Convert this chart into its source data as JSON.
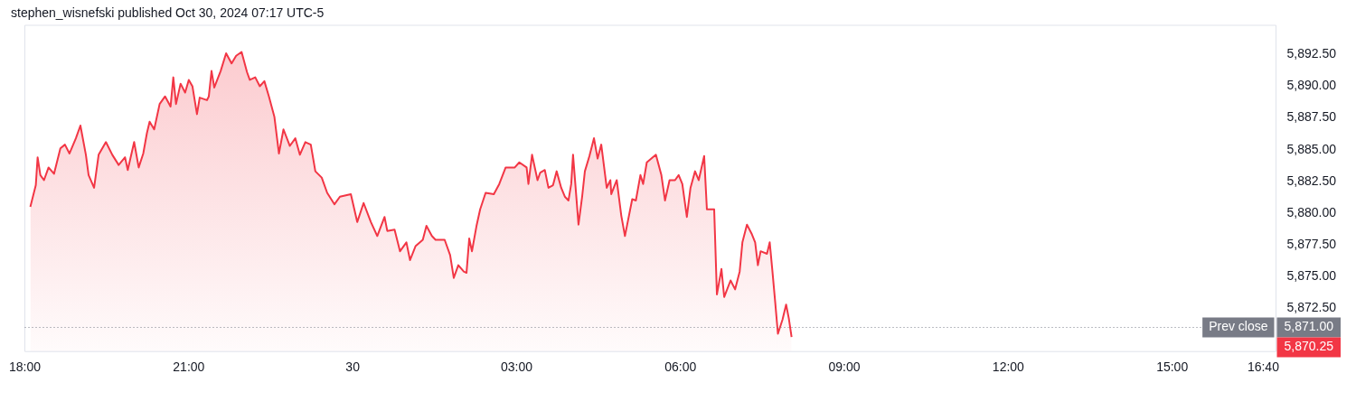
{
  "chart_data": {
    "type": "area",
    "title": "stephen_wisnefski published Oct 30, 2024 07:17 UTC-5",
    "xlim": [
      "2024-10-29T18:00",
      "2024-10-30T16:54"
    ],
    "ylim": [
      5869.1,
      5894.8
    ],
    "xticks": [
      {
        "value": "2024-10-29T18:00",
        "label": "18:00"
      },
      {
        "value": "2024-10-29T21:00",
        "label": "21:00"
      },
      {
        "value": "2024-10-30",
        "label": "30"
      },
      {
        "value": "2024-10-30T03:00",
        "label": "03:00"
      },
      {
        "value": "2024-10-30T06:00",
        "label": "06:00"
      },
      {
        "value": "2024-10-30T09:00",
        "label": "09:00"
      },
      {
        "value": "2024-10-30T12:00",
        "label": "12:00"
      },
      {
        "value": "2024-10-30T15:00",
        "label": "15:00"
      },
      {
        "value": "2024-10-30T16:40",
        "label": "16:40"
      }
    ],
    "yticks": [
      {
        "value": 5872.5,
        "label": "5,872.50"
      },
      {
        "value": 5875,
        "label": "5,875.00"
      },
      {
        "value": 5877.5,
        "label": "5,877.50"
      },
      {
        "value": 5880,
        "label": "5,880.00"
      },
      {
        "value": 5882.5,
        "label": "5,882.50"
      },
      {
        "value": 5885,
        "label": "5,885.00"
      },
      {
        "value": 5887.5,
        "label": "5,887.50"
      },
      {
        "value": 5890,
        "label": "5,890.00"
      },
      {
        "value": 5892.5,
        "label": "5,892.50"
      }
    ],
    "grid": false,
    "legend": false,
    "series": [
      {
        "color": "#f23645",
        "x": [
          "2024-10-29T18:06",
          "2024-10-29T18:12",
          "2024-10-29T18:14",
          "2024-10-29T18:17",
          "2024-10-29T18:21",
          "2024-10-29T18:26",
          "2024-10-29T18:32",
          "2024-10-29T18:39",
          "2024-10-29T18:44",
          "2024-10-29T18:49",
          "2024-10-29T18:56",
          "2024-10-29T19:01",
          "2024-10-29T19:07",
          "2024-10-29T19:10",
          "2024-10-29T19:16",
          "2024-10-29T19:21",
          "2024-10-29T19:29",
          "2024-10-29T19:36",
          "2024-10-29T19:43",
          "2024-10-29T19:50",
          "2024-10-29T19:53",
          "2024-10-29T20:00",
          "2024-10-29T20:05",
          "2024-10-29T20:10",
          "2024-10-29T20:14",
          "2024-10-29T20:17",
          "2024-10-29T20:22",
          "2024-10-29T20:28",
          "2024-10-29T20:34",
          "2024-10-29T20:40",
          "2024-10-29T20:43",
          "2024-10-29T20:46",
          "2024-10-29T20:51",
          "2024-10-29T20:56",
          "2024-10-29T21:00",
          "2024-10-29T21:04",
          "2024-10-29T21:09",
          "2024-10-29T21:12",
          "2024-10-29T21:20",
          "2024-10-29T21:22",
          "2024-10-29T21:25",
          "2024-10-29T21:28",
          "2024-10-29T21:35",
          "2024-10-29T21:41",
          "2024-10-29T21:47",
          "2024-10-29T21:52",
          "2024-10-29T21:58",
          "2024-10-29T22:04",
          "2024-10-29T22:07",
          "2024-10-29T22:13",
          "2024-10-29T22:18",
          "2024-10-29T22:23",
          "2024-10-29T22:28",
          "2024-10-29T22:34",
          "2024-10-29T22:39",
          "2024-10-29T22:44",
          "2024-10-29T22:51",
          "2024-10-29T22:57",
          "2024-10-29T23:02",
          "2024-10-29T23:08",
          "2024-10-29T23:14",
          "2024-10-29T23:19",
          "2024-10-29T23:26",
          "2024-10-29T23:32",
          "2024-10-29T23:40",
          "2024-10-29T23:46",
          "2024-10-29T23:58",
          "2024-10-30T00:05",
          "2024-10-30T00:12",
          "2024-10-30T00:20",
          "2024-10-30T00:27",
          "2024-10-30T00:35",
          "2024-10-30T00:38",
          "2024-10-30T00:46",
          "2024-10-30T00:52",
          "2024-10-30T00:59",
          "2024-10-30T01:03",
          "2024-10-30T01:09",
          "2024-10-30T01:17",
          "2024-10-30T01:21",
          "2024-10-30T01:27",
          "2024-10-30T01:31",
          "2024-10-30T01:41",
          "2024-10-30T01:47",
          "2024-10-30T01:51",
          "2024-10-30T01:56",
          "2024-10-30T02:02",
          "2024-10-30T02:05",
          "2024-10-30T02:08",
          "2024-10-30T02:11",
          "2024-10-30T02:16",
          "2024-10-30T02:20",
          "2024-10-30T02:26",
          "2024-10-30T02:35",
          "2024-10-30T02:41",
          "2024-10-30T02:48",
          "2024-10-30T02:58",
          "2024-10-30T03:03",
          "2024-10-30T03:11",
          "2024-10-30T03:13",
          "2024-10-30T03:17",
          "2024-10-30T03:23",
          "2024-10-30T03:26",
          "2024-10-30T03:31",
          "2024-10-30T03:35",
          "2024-10-30T03:40",
          "2024-10-30T03:44",
          "2024-10-30T03:49",
          "2024-10-30T03:53",
          "2024-10-30T03:57",
          "2024-10-30T04:00",
          "2024-10-30T04:02",
          "2024-10-30T04:08",
          "2024-10-30T04:12",
          "2024-10-30T04:15",
          "2024-10-30T04:20",
          "2024-10-30T04:25",
          "2024-10-30T04:29",
          "2024-10-30T04:33",
          "2024-10-30T04:39",
          "2024-10-30T04:43",
          "2024-10-30T04:44",
          "2024-10-30T04:50",
          "2024-10-30T04:55",
          "2024-10-30T04:59",
          "2024-10-30T05:07",
          "2024-10-30T05:11",
          "2024-10-30T05:16",
          "2024-10-30T05:19",
          "2024-10-30T05:23",
          "2024-10-30T05:28",
          "2024-10-30T05:33",
          "2024-10-30T05:39",
          "2024-10-30T05:43",
          "2024-10-30T05:48",
          "2024-10-30T05:54",
          "2024-10-30T05:58",
          "2024-10-30T06:02",
          "2024-10-30T06:07",
          "2024-10-30T06:11",
          "2024-10-30T06:16",
          "2024-10-30T06:20",
          "2024-10-30T06:26",
          "2024-10-30T06:29",
          "2024-10-30T06:37",
          "2024-10-30T06:40",
          "2024-10-30T06:45",
          "2024-10-30T06:48",
          "2024-10-30T06:55",
          "2024-10-30T07:00",
          "2024-10-30T07:05",
          "2024-10-30T07:08",
          "2024-10-30T07:13",
          "2024-10-30T07:18",
          "2024-10-30T07:22",
          "2024-10-30T07:25",
          "2024-10-30T07:28",
          "2024-10-30T07:35",
          "2024-10-30T07:38",
          "2024-10-30T07:41",
          "2024-10-30T07:44",
          "2024-10-30T07:47",
          "2024-10-30T07:52",
          "2024-10-30T07:56",
          "2024-10-30T07:59",
          "2024-10-30T08:02"
        ],
        "values": [
          5880.5,
          5882.2,
          5884.4,
          5883,
          5882.6,
          5883.6,
          5883.1,
          5885.1,
          5885.4,
          5884.7,
          5885.9,
          5886.9,
          5884.6,
          5883,
          5882,
          5884.6,
          5885.6,
          5884.6,
          5883.8,
          5884.4,
          5883.4,
          5885.6,
          5883.6,
          5884.7,
          5886.3,
          5887.2,
          5886.6,
          5888.6,
          5889.2,
          5888.4,
          5890.7,
          5888.6,
          5890.2,
          5889.5,
          5890.5,
          5890,
          5887.8,
          5889.1,
          5888.9,
          5889.2,
          5891.2,
          5889.9,
          5891.2,
          5892.6,
          5891.8,
          5892.4,
          5892.7,
          5891.1,
          5890.5,
          5890.7,
          5890,
          5890.4,
          5889.2,
          5887.6,
          5884.7,
          5886.6,
          5885.3,
          5885.9,
          5884.6,
          5885.6,
          5885.4,
          5883.3,
          5882.8,
          5881.6,
          5880.7,
          5881.3,
          5881.5,
          5879.3,
          5880.8,
          5879.3,
          5878.2,
          5879.7,
          5878.6,
          5878.7,
          5877,
          5877.7,
          5876.3,
          5877.4,
          5877.9,
          5879,
          5878.2,
          5877.9,
          5877.9,
          5876.7,
          5874.9,
          5875.9,
          5875.4,
          5875.3,
          5878,
          5877,
          5879,
          5880.3,
          5881.6,
          5881.5,
          5882.3,
          5883.6,
          5883.6,
          5884,
          5883.6,
          5882.3,
          5884.6,
          5882.6,
          5883.2,
          5883.4,
          5882,
          5882.2,
          5883.3,
          5882,
          5881.3,
          5881,
          5882.3,
          5884.6,
          5879.1,
          5881.3,
          5883.3,
          5884.5,
          5885.9,
          5884.3,
          5885.4,
          5882,
          5882.6,
          5881.5,
          5882.6,
          5879.8,
          5878.2,
          5881.1,
          5881,
          5883,
          5882.3,
          5884,
          5884.3,
          5884.6,
          5883,
          5881,
          5882.6,
          5882.6,
          5883,
          5882.3,
          5879.7,
          5882,
          5883.3,
          5882.6,
          5884.5,
          5880.3,
          5880.3,
          5873.6,
          5875.6,
          5873.4,
          5874.7,
          5874,
          5875.4,
          5877.7,
          5879.1,
          5878.4,
          5877.7,
          5875.9,
          5877,
          5876.8,
          5877.7,
          5875.4,
          5873,
          5870.5,
          5871.6,
          5872.8,
          5871.7,
          5870.25
        ]
      }
    ],
    "ref_lines": [
      {
        "axis": "y",
        "value": 5871,
        "label": "Prev close",
        "color": "#787b86",
        "line_style": "dotted"
      }
    ],
    "annotations": [
      "5,871.00",
      "5,870.25"
    ]
  }
}
